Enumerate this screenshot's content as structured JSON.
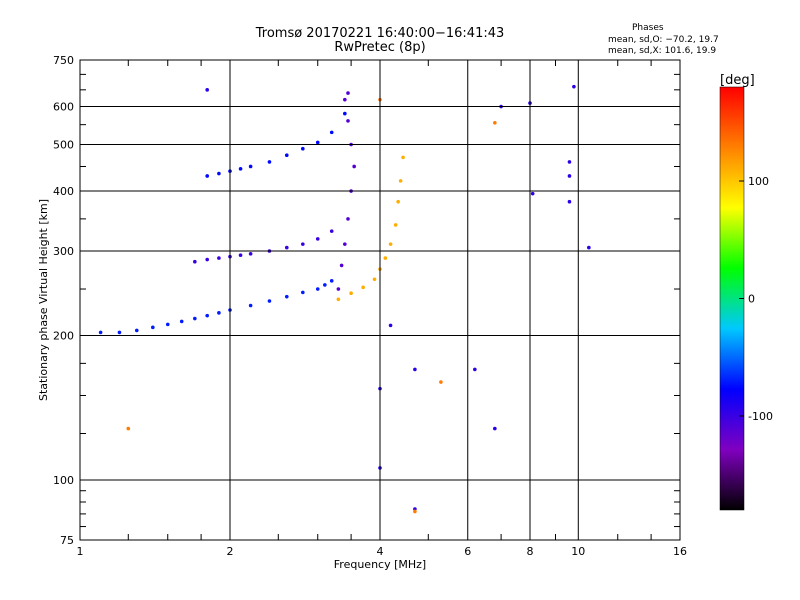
{
  "chart_data": {
    "type": "scatter",
    "title": "Tromsø 20170221 16:40:00−16:41:43",
    "subtitle": "RwPretec (8p)",
    "xlabel": "Frequency [MHz]",
    "ylabel": "Stationary phase Virtual Height [km]",
    "x_scale": "log",
    "y_scale": "log",
    "xlim": [
      1,
      16
    ],
    "ylim": [
      75,
      750
    ],
    "x_ticks": [
      1,
      2,
      4,
      6,
      8,
      10,
      16
    ],
    "y_ticks": [
      75,
      100,
      200,
      300,
      400,
      500,
      600,
      750
    ],
    "grid": true,
    "stats": {
      "heading": "Phases",
      "line_o": "mean, sd,O: −70.2, 19.7",
      "line_x": "mean, sd,X: 101.6, 19.9"
    },
    "colorbar": {
      "label": "[deg]",
      "range": [
        -180,
        180
      ],
      "ticks": [
        100,
        0,
        -100
      ],
      "colors": [
        "#000000",
        "#8000c0",
        "#0000ff",
        "#00c8ff",
        "#00ff00",
        "#ffff00",
        "#ff8000",
        "#ff0000"
      ]
    },
    "series": [
      {
        "trace": "upper-O",
        "phase": -75,
        "x": [
          1.8,
          1.9,
          2.0,
          2.1,
          2.2,
          2.4,
          2.6,
          2.8,
          3.0,
          3.2,
          3.4
        ],
        "y": [
          430,
          435,
          440,
          445,
          450,
          460,
          475,
          490,
          505,
          530,
          580
        ]
      },
      {
        "trace": "middle-O",
        "phase": -100,
        "x": [
          1.7,
          1.8,
          1.9,
          2.0,
          2.1,
          2.2,
          2.4,
          2.6,
          2.8,
          3.0,
          3.2
        ],
        "y": [
          285,
          288,
          290,
          292,
          294,
          296,
          300,
          305,
          310,
          318,
          330
        ]
      },
      {
        "trace": "lower-O",
        "phase": -70,
        "x": [
          1.1,
          1.2,
          1.3,
          1.4,
          1.5,
          1.6,
          1.7,
          1.8,
          1.9,
          2.0,
          2.2,
          2.4,
          2.6,
          2.8,
          3.0,
          3.1,
          3.2
        ],
        "y": [
          203,
          203,
          205,
          208,
          211,
          214,
          217,
          220,
          223,
          226,
          231,
          236,
          241,
          246,
          250,
          255,
          260
        ]
      },
      {
        "trace": "O-cusp",
        "phase": -110,
        "x": [
          3.3,
          3.35,
          3.4,
          3.45,
          3.5,
          3.55,
          3.5,
          3.45,
          3.4,
          3.45
        ],
        "y": [
          250,
          280,
          310,
          350,
          400,
          450,
          500,
          560,
          620,
          640
        ]
      },
      {
        "trace": "X-trace",
        "phase": 110,
        "x": [
          3.3,
          3.5,
          3.7,
          3.9,
          4.0,
          4.1,
          4.2,
          4.3,
          4.35,
          4.4,
          4.45
        ],
        "y": [
          238,
          245,
          252,
          262,
          275,
          290,
          310,
          340,
          380,
          420,
          470
        ]
      },
      {
        "trace": "scattered",
        "phase": -95,
        "x": [
          1.8,
          4.0,
          4.0,
          4.2,
          4.7,
          4.7,
          6.2,
          6.8,
          7.0,
          8.0,
          8.1,
          9.6,
          9.6,
          9.6,
          9.8,
          10.5
        ],
        "y": [
          650,
          106,
          155,
          210,
          87,
          170,
          170,
          128,
          600,
          610,
          395,
          380,
          430,
          460,
          660,
          305
        ]
      },
      {
        "trace": "scattered-warm",
        "phase": 130,
        "x": [
          1.25,
          4.0,
          4.7,
          5.3,
          6.8
        ],
        "y": [
          128,
          620,
          86,
          160,
          555
        ]
      }
    ]
  }
}
